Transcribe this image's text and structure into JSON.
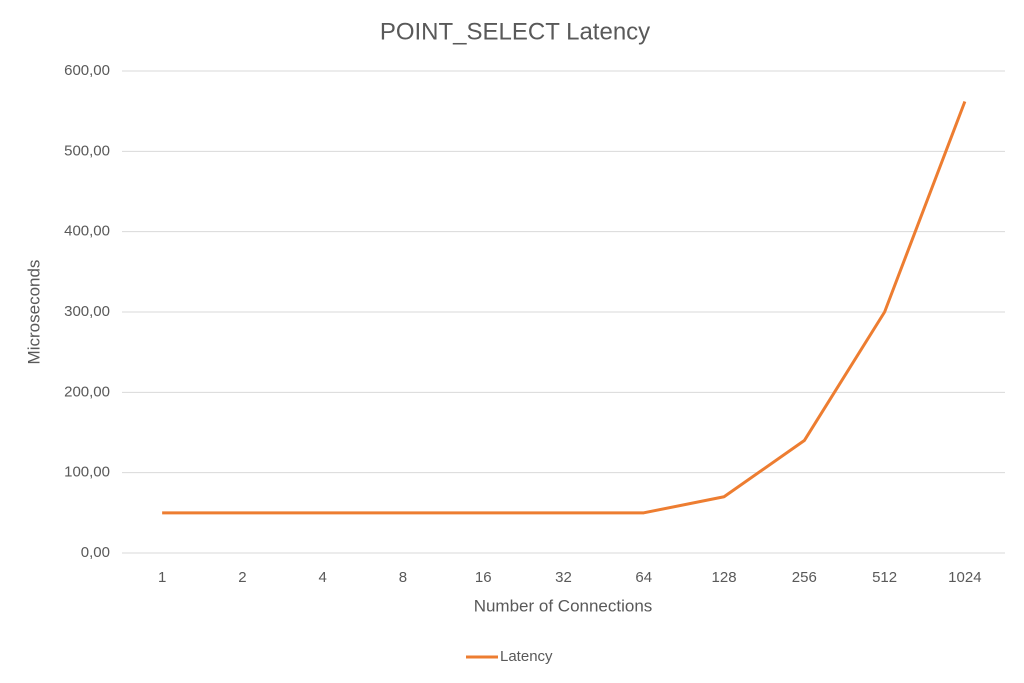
{
  "chart_data": {
    "type": "line",
    "title": "POINT_SELECT Latency",
    "x_label": "Number of Connections",
    "y_label": "Microseconds",
    "categories": [
      "1",
      "2",
      "4",
      "8",
      "16",
      "32",
      "64",
      "128",
      "256",
      "512",
      "1024"
    ],
    "series": [
      {
        "name": "Latency",
        "color": "#ed7d31",
        "values": [
          50,
          50,
          50,
          50,
          50,
          50,
          50,
          70,
          140,
          300,
          562
        ]
      }
    ],
    "ylim": [
      0,
      600
    ],
    "yticks": [
      {
        "value": 0,
        "label": "0,00"
      },
      {
        "value": 100,
        "label": "100,00"
      },
      {
        "value": 200,
        "label": "200,00"
      },
      {
        "value": 300,
        "label": "300,00"
      },
      {
        "value": 400,
        "label": "400,00"
      },
      {
        "value": 500,
        "label": "500,00"
      },
      {
        "value": 600,
        "label": "600,00"
      }
    ],
    "grid": true,
    "legend": "bottom"
  }
}
